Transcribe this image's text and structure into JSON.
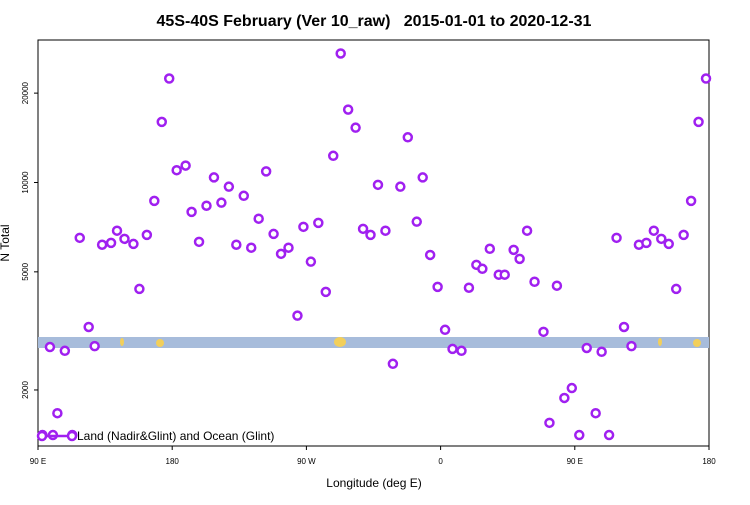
{
  "chart_data": {
    "type": "scatter",
    "title": "45S-40S February (Ver 10_raw)   2015-01-01 to 2020-12-31",
    "x_label": "Longitude (deg E)",
    "y_label": "N Total",
    "log_y": true,
    "xlim": [
      90,
      540
    ],
    "xticks": [
      {
        "value": 90,
        "label": "90 E"
      },
      180,
      {
        "value": 270,
        "label": "90 W"
      },
      {
        "value": 360,
        "label": "0"
      },
      {
        "value": 450,
        "label": "90 E"
      },
      {
        "value": 540,
        "label": "180"
      }
    ],
    "ylim": [
      1295,
      30200
    ],
    "yticks": [
      2000,
      5000,
      10000,
      20000
    ],
    "legend": "bottom-left",
    "series": [
      {
        "name": "Land (Nadir&Glint) and Ocean (Glint)",
        "color": "#a020f0",
        "x": [
          93,
          98,
          100,
          103,
          108,
          113,
          118,
          124,
          128,
          133,
          139,
          143,
          148,
          154,
          158,
          163,
          168,
          173,
          178,
          183,
          189,
          193,
          198,
          203,
          208,
          213,
          218,
          223,
          228,
          233,
          238,
          243,
          248,
          253,
          258,
          264,
          268,
          273,
          278,
          283,
          288,
          293,
          298,
          303,
          308,
          313,
          318,
          323,
          328,
          333,
          338,
          344,
          348,
          353,
          358,
          363,
          368,
          374,
          379,
          384,
          388,
          393,
          399,
          403,
          409,
          413,
          418,
          423,
          429,
          433,
          438,
          443,
          448,
          453,
          458,
          464,
          468,
          473,
          478,
          483,
          488,
          493,
          498,
          503,
          508,
          513,
          518,
          523,
          528,
          533,
          538
        ],
        "values": [
          1410,
          2790,
          1410,
          1670,
          2710,
          1410,
          6510,
          3260,
          2810,
          6170,
          6260,
          6880,
          6460,
          6210,
          4380,
          6660,
          8670,
          16000,
          22400,
          11000,
          11400,
          7960,
          6310,
          8350,
          10400,
          8550,
          9680,
          6170,
          9020,
          6030,
          7550,
          10900,
          6710,
          5750,
          6030,
          3560,
          7090,
          5410,
          7310,
          4280,
          12300,
          27200,
          17600,
          15300,
          6980,
          6660,
          9820,
          6880,
          2450,
          9680,
          14200,
          7380,
          10400,
          5700,
          4450,
          3190,
          2750,
          2710,
          4420,
          5280,
          5120,
          5980,
          4890,
          4890,
          5930,
          5530,
          6880,
          4630,
          3140,
          1550,
          4490,
          1880,
          2030,
          1410,
          2770,
          1670,
          2690,
          1410,
          6510,
          3260,
          2810,
          6170,
          6260,
          6880,
          6460,
          6210,
          4380,
          6660,
          8670,
          16000,
          22400
        ]
      }
    ]
  }
}
